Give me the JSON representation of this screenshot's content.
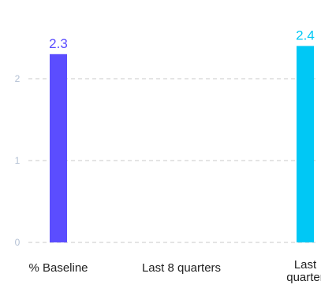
{
  "colors": {
    "series_1": "#5b4dff",
    "series_2": "#00c8f5",
    "grid": "#c8c8c8",
    "tick_text": "#b3c0d4",
    "category_text": "#2a3a66"
  },
  "chart_data": {
    "type": "bar",
    "categories": [
      "% Baseline",
      "Last 8 quarters",
      "Last quarter"
    ],
    "category_lines": [
      [
        "% Baseline"
      ],
      [
        "Last 8 quarters"
      ],
      [
        "Last",
        "quarter"
      ]
    ],
    "values": [
      2.3,
      null,
      2.4
    ],
    "value_labels": [
      "2.3",
      "",
      "2.4"
    ],
    "bar_colors": [
      "#5b4dff",
      null,
      "#00c8f5"
    ],
    "yticks": [
      0,
      1,
      2
    ],
    "ylim": [
      0,
      2.4
    ],
    "grid": true,
    "title": "",
    "xlabel": "",
    "ylabel": ""
  }
}
